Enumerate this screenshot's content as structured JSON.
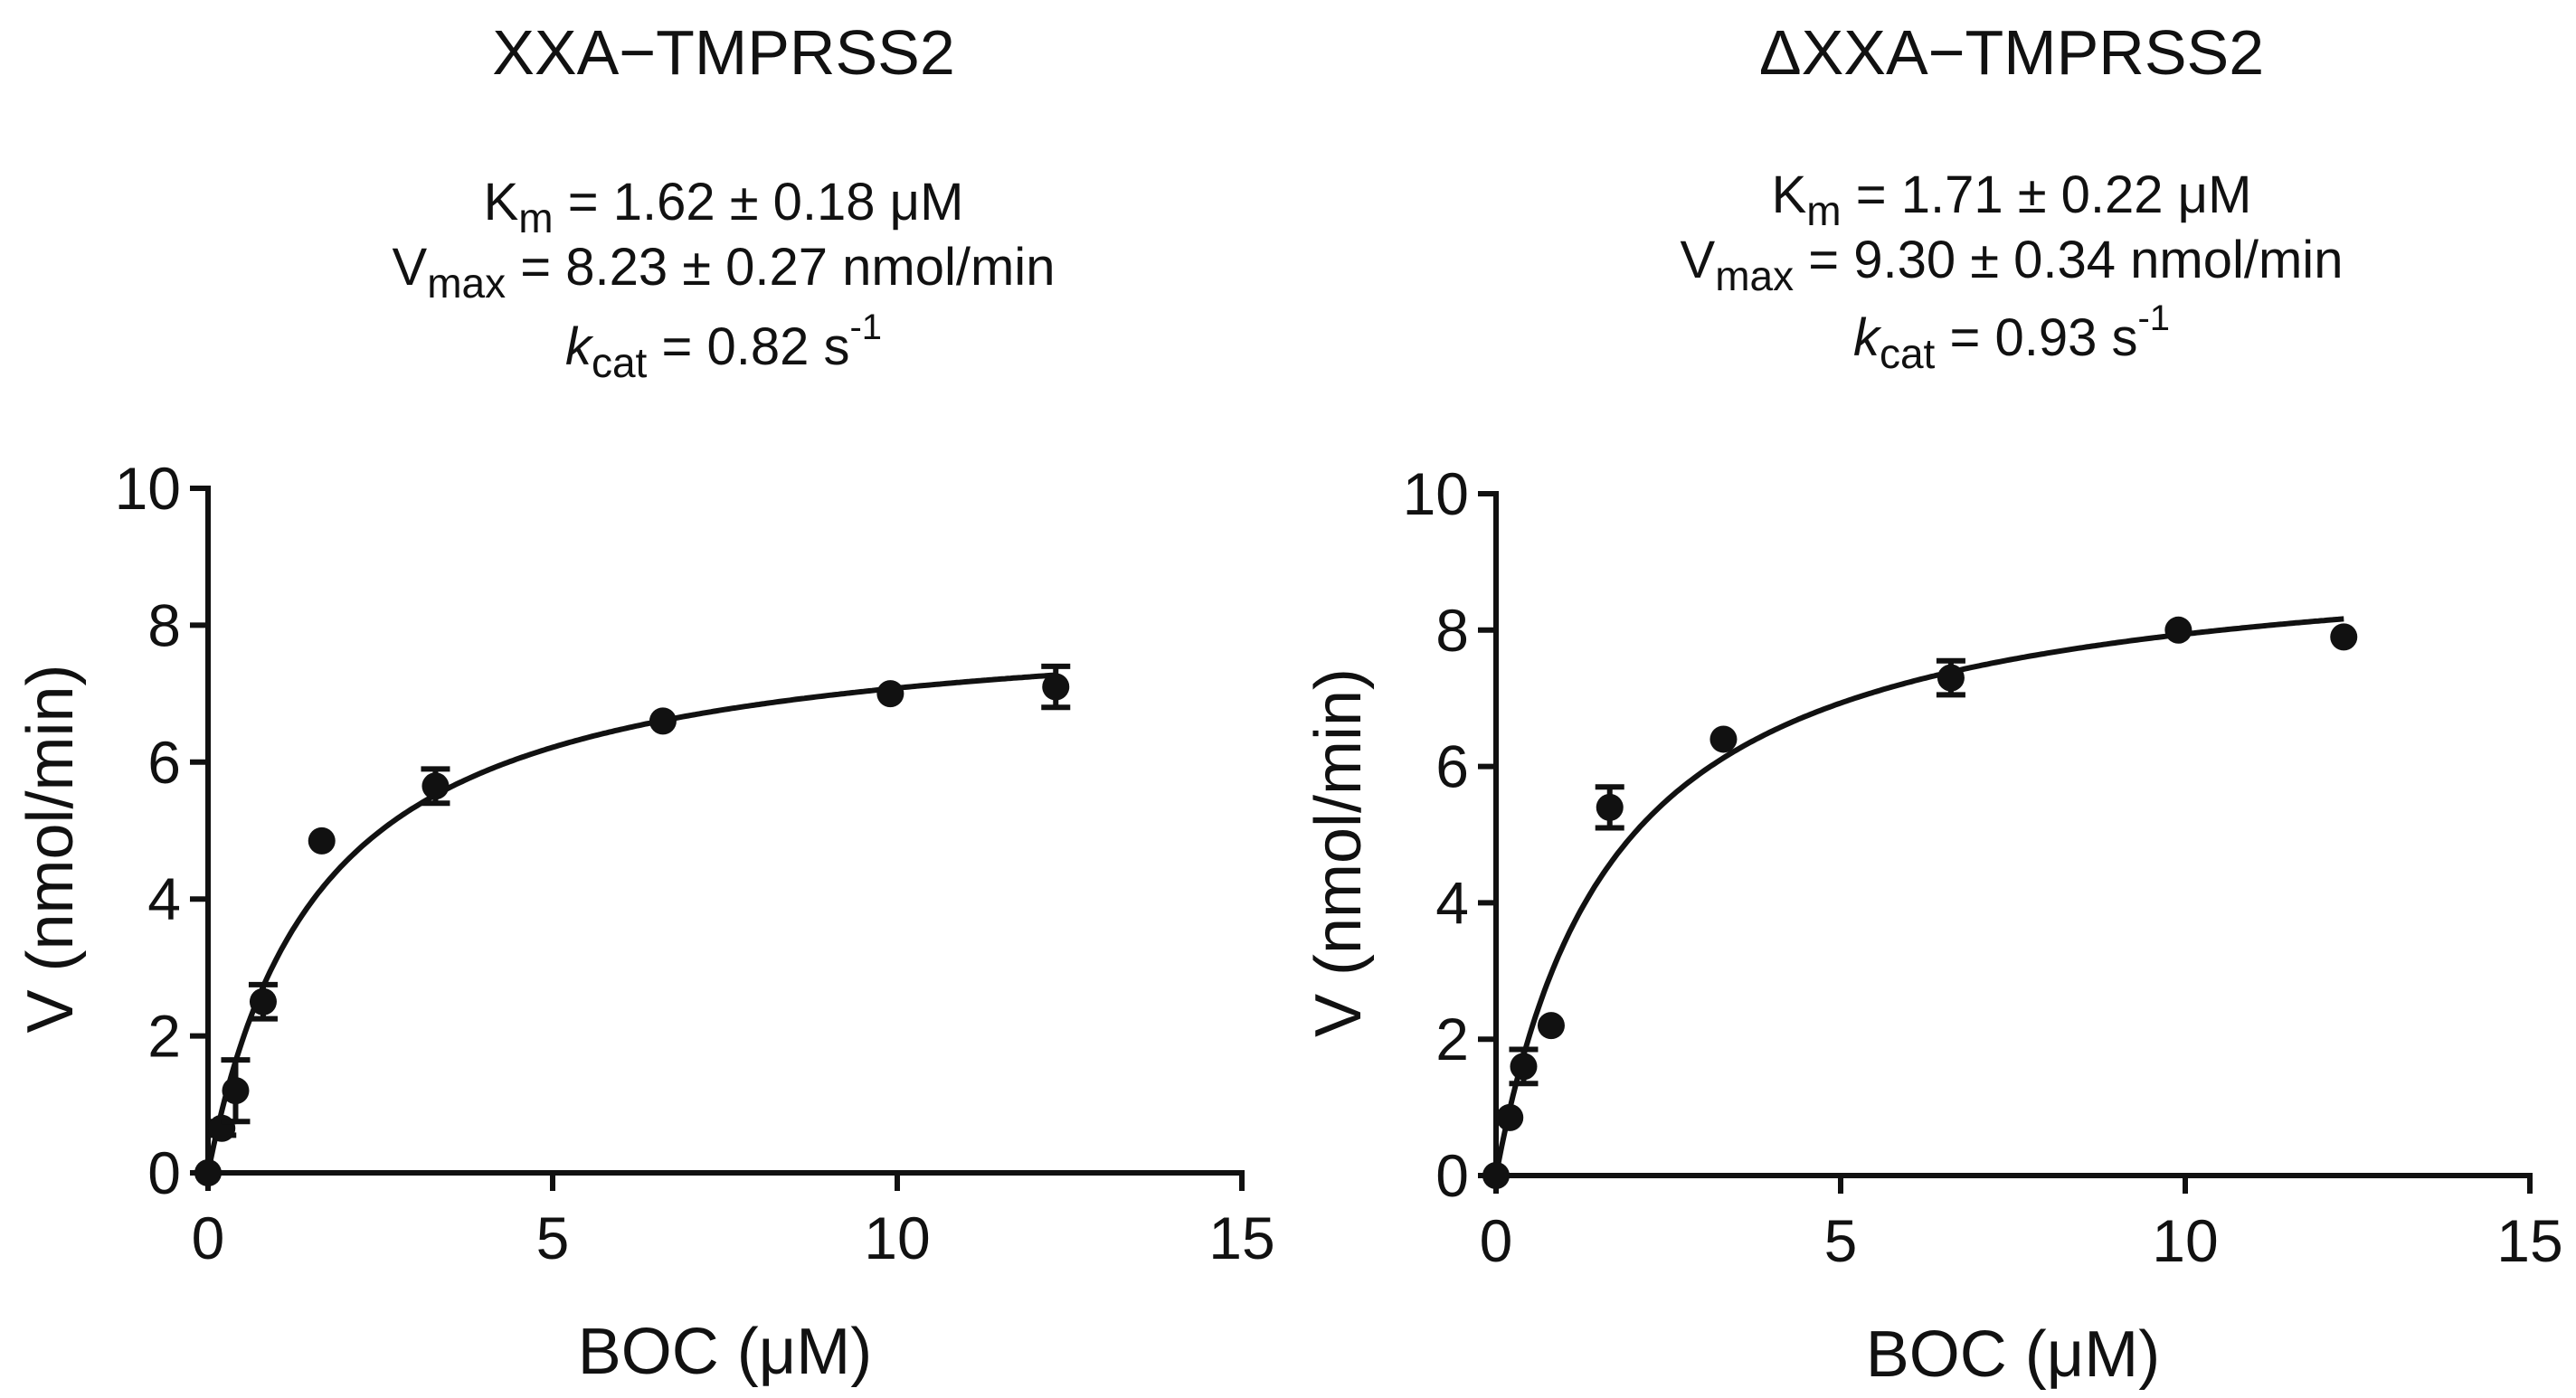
{
  "chart_data": [
    {
      "type": "scatter",
      "title": "XXA−TMPRSS2",
      "params": {
        "km_label": "K",
        "km_sub": "m",
        "km_value": " = 1.62 ± 0.18 μM",
        "vmax_label": "V",
        "vmax_sub": "max",
        "vmax_value": " = 8.23 ± 0.27 nmol/min",
        "kcat_label": "k",
        "kcat_sub": "cat",
        "kcat_value": " = 0.82 s",
        "kcat_sup": "-1"
      },
      "xlabel": "BOC (μM)",
      "ylabel": "V (nmol/min)",
      "xlim": [
        0,
        15
      ],
      "ylim": [
        0,
        10
      ],
      "xticks": [
        0,
        5,
        10,
        15
      ],
      "yticks": [
        0,
        2,
        4,
        6,
        8,
        10
      ],
      "fit": {
        "model": "Michaelis-Menten",
        "Km": 1.62,
        "Vmax": 8.23,
        "x_end": 12.3
      },
      "series": [
        {
          "name": "XXA−TMPRSS2",
          "x": [
            0,
            0.2,
            0.4,
            0.8,
            1.65,
            3.3,
            6.6,
            9.9,
            12.3
          ],
          "y": [
            0,
            0.65,
            1.2,
            2.5,
            4.85,
            5.65,
            6.6,
            7.0,
            7.1
          ],
          "err": [
            0,
            0.1,
            0.45,
            0.25,
            0.05,
            0.25,
            0.05,
            0.05,
            0.3
          ]
        }
      ]
    },
    {
      "type": "scatter",
      "title": "ΔXXA−TMPRSS2",
      "params": {
        "km_label": "K",
        "km_sub": "m",
        "km_value": " = 1.71 ± 0.22 μM",
        "vmax_label": "V",
        "vmax_sub": "max",
        "vmax_value": " = 9.30 ± 0.34 nmol/min",
        "kcat_label": "k",
        "kcat_sub": "cat",
        "kcat_value": " = 0.93 s",
        "kcat_sup": "-1"
      },
      "xlabel": "BOC (μM)",
      "ylabel": "V (nmol/min)",
      "xlim": [
        0,
        15
      ],
      "ylim": [
        0,
        10
      ],
      "xticks": [
        0,
        5,
        10,
        15
      ],
      "yticks": [
        0,
        2,
        4,
        6,
        8,
        10
      ],
      "fit": {
        "model": "Michaelis-Menten",
        "Km": 1.71,
        "Vmax": 9.3,
        "x_end": 12.3
      },
      "series": [
        {
          "name": "ΔXXA−TMPRSS2",
          "x": [
            0,
            0.2,
            0.4,
            0.8,
            1.65,
            3.3,
            6.6,
            9.9,
            12.3
          ],
          "y": [
            0,
            0.85,
            1.6,
            2.2,
            5.4,
            6.4,
            7.3,
            8.0,
            7.9
          ],
          "err": [
            0,
            0.05,
            0.25,
            0.05,
            0.3,
            0.05,
            0.25,
            0.05,
            0.05
          ]
        }
      ]
    }
  ]
}
